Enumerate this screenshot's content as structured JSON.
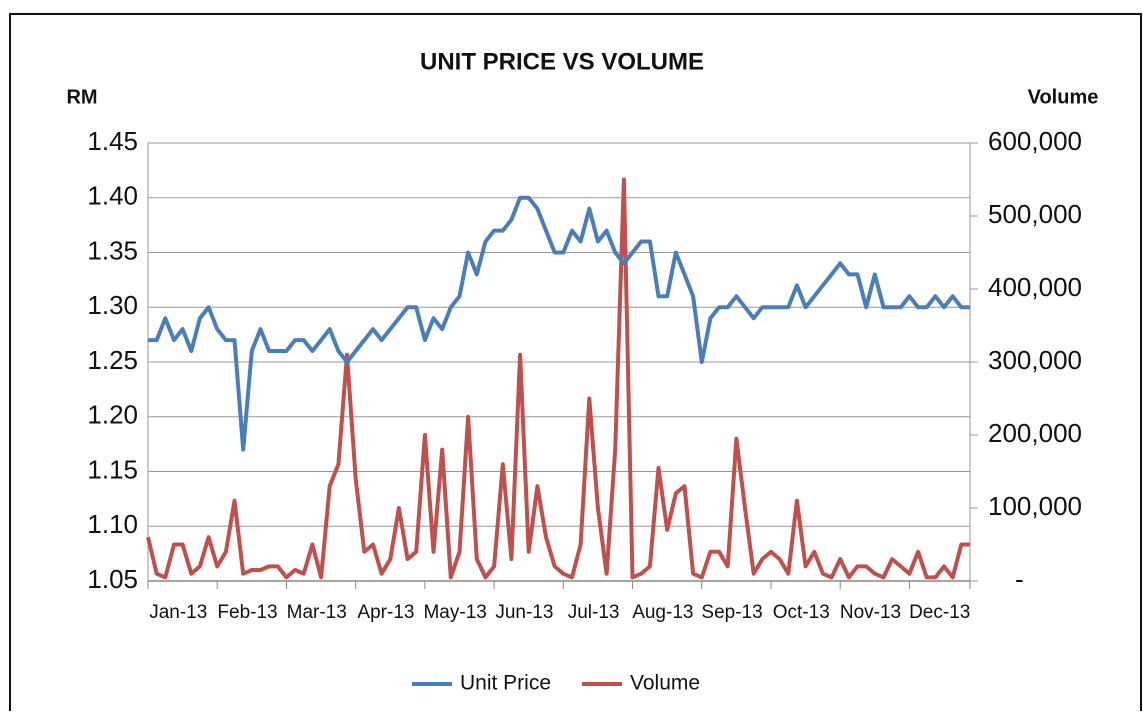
{
  "chart_data": {
    "type": "line",
    "title": "UNIT PRICE VS VOLUME",
    "y_label": "RM",
    "y2_label": "Volume",
    "categories": [
      "Jan-13",
      null,
      null,
      null,
      null,
      null,
      null,
      null,
      "Feb-13",
      null,
      null,
      null,
      null,
      null,
      null,
      null,
      "Mar-13",
      null,
      null,
      null,
      null,
      null,
      null,
      null,
      "Apr-13",
      null,
      null,
      null,
      null,
      null,
      null,
      null,
      "May-13",
      null,
      null,
      null,
      null,
      null,
      null,
      null,
      "Jun-13",
      null,
      null,
      null,
      null,
      null,
      null,
      null,
      "Jul-13",
      null,
      null,
      null,
      null,
      null,
      null,
      null,
      "Aug-13",
      null,
      null,
      null,
      null,
      null,
      null,
      null,
      "Sep-13",
      null,
      null,
      null,
      null,
      null,
      null,
      null,
      "Oct-13",
      null,
      null,
      null,
      null,
      null,
      null,
      null,
      "Nov-13",
      null,
      null,
      null,
      null,
      null,
      null,
      null,
      "Dec-13",
      null,
      null,
      null,
      null,
      null,
      null,
      null
    ],
    "series": [
      {
        "name": "Unit Price",
        "color": "#4a7ebb",
        "values": [
          1.27,
          1.27,
          1.29,
          1.27,
          1.28,
          1.26,
          1.29,
          1.3,
          1.28,
          1.27,
          1.27,
          1.17,
          1.26,
          1.28,
          1.26,
          1.26,
          1.26,
          1.27,
          1.27,
          1.26,
          1.27,
          1.28,
          1.26,
          1.25,
          1.26,
          1.27,
          1.28,
          1.27,
          1.28,
          1.29,
          1.3,
          1.3,
          1.27,
          1.29,
          1.28,
          1.3,
          1.31,
          1.35,
          1.33,
          1.36,
          1.37,
          1.37,
          1.38,
          1.4,
          1.4,
          1.39,
          1.37,
          1.35,
          1.35,
          1.37,
          1.36,
          1.39,
          1.36,
          1.37,
          1.35,
          1.34,
          1.35,
          1.36,
          1.36,
          1.31,
          1.31,
          1.35,
          1.33,
          1.31,
          1.25,
          1.29,
          1.3,
          1.3,
          1.31,
          1.3,
          1.29,
          1.3,
          1.3,
          1.3,
          1.3,
          1.32,
          1.3,
          1.31,
          1.32,
          1.33,
          1.34,
          1.33,
          1.33,
          1.3,
          1.33,
          1.3,
          1.3,
          1.3,
          1.31,
          1.3,
          1.3,
          1.31,
          1.3,
          1.31,
          1.3,
          1.3
        ]
      },
      {
        "name": "Volume",
        "color": "#c0504d",
        "axis": "y2",
        "values": [
          60000,
          10000,
          5000,
          50000,
          50000,
          10000,
          20000,
          60000,
          20000,
          40000,
          110000,
          10000,
          15000,
          15000,
          20000,
          20000,
          5000,
          15000,
          10000,
          50000,
          5000,
          130000,
          160000,
          310000,
          140000,
          40000,
          50000,
          10000,
          30000,
          100000,
          30000,
          40000,
          200000,
          40000,
          180000,
          5000,
          40000,
          225000,
          30000,
          5000,
          20000,
          160000,
          30000,
          310000,
          40000,
          130000,
          60000,
          20000,
          10000,
          5000,
          50000,
          250000,
          100000,
          10000,
          180000,
          550000,
          5000,
          10000,
          20000,
          155000,
          70000,
          120000,
          130000,
          10000,
          5000,
          40000,
          40000,
          20000,
          195000,
          100000,
          10000,
          30000,
          40000,
          30000,
          10000,
          110000,
          20000,
          40000,
          10000,
          5000,
          30000,
          5000,
          20000,
          20000,
          10000,
          5000,
          30000,
          20000,
          10000,
          40000,
          5000,
          5000,
          20000,
          5000,
          50000,
          50000
        ]
      }
    ],
    "ylim": [
      1.05,
      1.45
    ],
    "yticks": [
      1.05,
      {
        "value": 1.1,
        "label": "1.10"
      },
      1.15,
      {
        "value": 1.2,
        "label": "1.20"
      },
      1.25,
      {
        "value": 1.3,
        "label": "1.30"
      },
      1.35,
      {
        "value": 1.4,
        "label": "1.40"
      },
      1.45
    ],
    "y2lim": [
      0,
      600000
    ],
    "y2ticks": [
      {
        "value": 0,
        "label": "-"
      },
      {
        "value": 100000,
        "label": "100,000"
      },
      {
        "value": 200000,
        "label": "200,000"
      },
      {
        "value": 300000,
        "label": "300,000"
      },
      {
        "value": 400000,
        "label": "400,000"
      },
      {
        "value": 500000,
        "label": "500,000"
      },
      {
        "value": 600000,
        "label": "600,000"
      }
    ],
    "grid": true,
    "legend": "bottom"
  }
}
